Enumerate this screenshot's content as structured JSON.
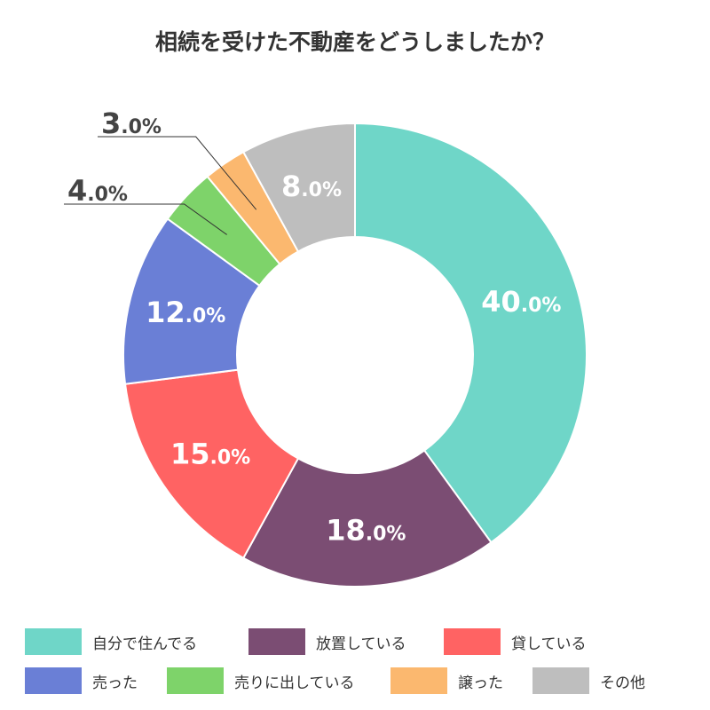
{
  "chart_data": {
    "type": "pie",
    "title": "相続を受けた不動産をどうしましたか？",
    "categories": [
      "自分で住んでる",
      "放置している",
      "貸している",
      "売った",
      "売りに出している",
      "譲った",
      "その他"
    ],
    "values": [
      40,
      18,
      15,
      12,
      4,
      3,
      8
    ],
    "labels": [
      "40.0%",
      "18.0%",
      "15.0%",
      "12.0%",
      "4.0%",
      "3.0%",
      "8.0%"
    ],
    "colors": [
      "#6fd6c8",
      "#7b4d73",
      "#ff6363",
      "#6a7fd6",
      "#7ed36a",
      "#fbb86f",
      "#bebebe"
    ],
    "legend_position": "bottom",
    "donut": true
  }
}
